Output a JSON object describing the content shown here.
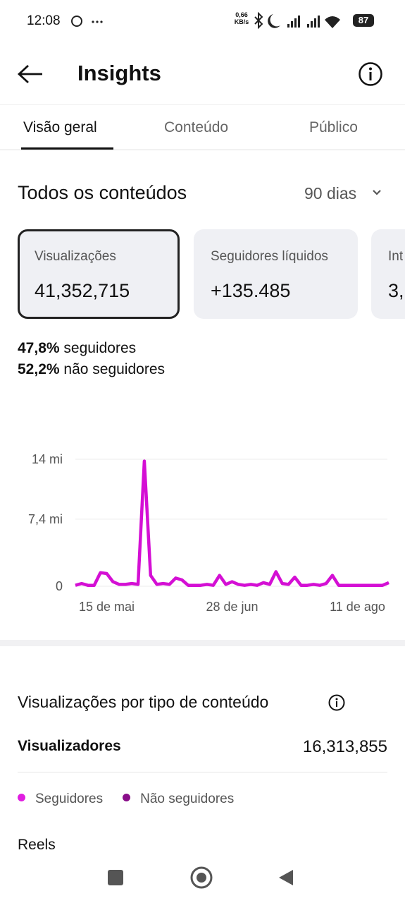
{
  "status_bar": {
    "time": "12:08",
    "speed": "0,66 KB/s",
    "battery": "87"
  },
  "header": {
    "title": "Insights"
  },
  "tabs": [
    "Visão geral",
    "Conteúdo",
    "Público"
  ],
  "section": {
    "title": "Todos os conteúdos",
    "period": "90 dias"
  },
  "cards": [
    {
      "label": "Visualizações",
      "value": "41,352,715"
    },
    {
      "label": "Seguidores líquidos",
      "value": "+135.485"
    },
    {
      "label": "Int",
      "value": "3,"
    }
  ],
  "audience": [
    {
      "percent": "47,8%",
      "label": "seguidores"
    },
    {
      "percent": "52,2%",
      "label": "não seguidores"
    }
  ],
  "chart_data": {
    "type": "line",
    "categories": [
      null,
      null,
      null,
      null,
      null,
      "15 de mai",
      null,
      null,
      null,
      null,
      null,
      null,
      null,
      null,
      null,
      null,
      null,
      null,
      null,
      null,
      null,
      null,
      null,
      null,
      null,
      "28 de jun",
      null,
      null,
      null,
      null,
      null,
      null,
      null,
      null,
      null,
      null,
      null,
      null,
      null,
      null,
      null,
      null,
      null,
      null,
      null,
      "11 de ago",
      null,
      null,
      null,
      null,
      null
    ],
    "series": [
      {
        "name": "Visualizações",
        "color": "#d40fd4",
        "values": [
          0.1,
          0.3,
          0.1,
          0.1,
          1.5,
          1.4,
          0.5,
          0.2,
          0.2,
          0.3,
          0.2,
          13.8,
          1.2,
          0.2,
          0.3,
          0.2,
          0.9,
          0.7,
          0.1,
          0.1,
          0.1,
          0.2,
          0.1,
          1.2,
          0.2,
          0.5,
          0.2,
          0.1,
          0.2,
          0.1,
          0.4,
          0.2,
          1.6,
          0.3,
          0.2,
          1.0,
          0.1,
          0.1,
          0.2,
          0.1,
          0.3,
          1.2,
          0.1,
          0.1,
          0.1,
          0.1,
          0.1,
          0.1,
          0.1,
          0.1,
          0.4
        ]
      }
    ],
    "ylim": [
      0,
      14
    ],
    "yticks": [
      0,
      {
        "value": 7.4,
        "label": "7,4 mi"
      },
      {
        "value": 14,
        "label": "14 mi"
      }
    ],
    "grid": true
  },
  "breakdown": {
    "title": "Visualizações por tipo de conteúdo",
    "metric_label": "Visualizadores",
    "metric_value": "16,313,855",
    "legend": [
      {
        "name": "Seguidores",
        "color": "#e01ee0"
      },
      {
        "name": "Não seguidores",
        "color": "#8a0e8a"
      }
    ],
    "first_type": "Reels"
  }
}
